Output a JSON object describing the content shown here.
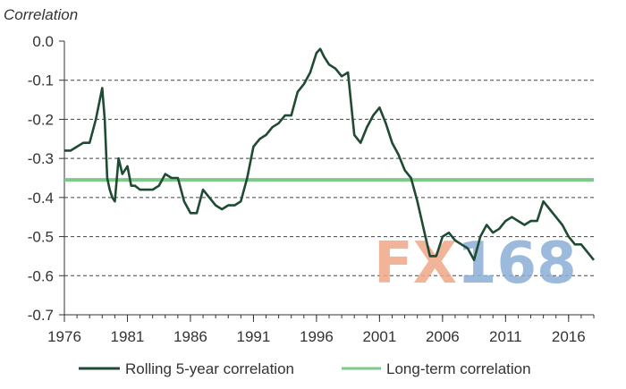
{
  "chart_data": {
    "type": "line",
    "ylabel": "Correlation",
    "xlim": [
      1976,
      2018
    ],
    "ylim": [
      -0.7,
      0.0
    ],
    "y_ticks": [
      0.0,
      -0.1,
      -0.2,
      -0.3,
      -0.4,
      -0.5,
      -0.6,
      -0.7
    ],
    "y_tick_labels": [
      "0.0",
      "-0.1",
      "-0.2",
      "-0.3",
      "-0.4",
      "-0.5",
      "-0.6",
      "-0.7"
    ],
    "x_ticks": [
      1976,
      1981,
      1986,
      1991,
      1996,
      2001,
      2006,
      2011,
      2016
    ],
    "x_tick_labels": [
      "1976",
      "1981",
      "1986",
      "1991",
      "1996",
      "2001",
      "2006",
      "2011",
      "2016"
    ],
    "grid": "horizontal dashed",
    "legend_position": "bottom",
    "series": [
      {
        "name": "Rolling 5-year correlation",
        "color": "#1f4a33",
        "x": [
          1976.0,
          1976.5,
          1977.0,
          1977.5,
          1978.0,
          1978.5,
          1979.0,
          1979.2,
          1979.4,
          1979.6,
          1979.8,
          1980.0,
          1980.3,
          1980.6,
          1981.0,
          1981.3,
          1981.6,
          1982.0,
          1982.5,
          1983.0,
          1983.5,
          1984.0,
          1984.5,
          1985.0,
          1985.5,
          1986.0,
          1986.5,
          1987.0,
          1987.5,
          1988.0,
          1988.5,
          1989.0,
          1989.5,
          1990.0,
          1990.5,
          1991.0,
          1991.5,
          1992.0,
          1992.5,
          1993.0,
          1993.5,
          1994.0,
          1994.5,
          1995.0,
          1995.5,
          1996.0,
          1996.3,
          1996.6,
          1997.0,
          1997.5,
          1998.0,
          1998.5,
          1999.0,
          1999.5,
          2000.0,
          2000.5,
          2001.0,
          2001.5,
          2002.0,
          2002.5,
          2003.0,
          2003.5,
          2004.0,
          2004.5,
          2005.0,
          2005.5,
          2006.0,
          2006.5,
          2007.0,
          2007.5,
          2008.0,
          2008.5,
          2009.0,
          2009.5,
          2010.0,
          2010.5,
          2011.0,
          2011.5,
          2012.0,
          2012.5,
          2013.0,
          2013.5,
          2014.0,
          2014.5,
          2015.0,
          2015.5,
          2016.0,
          2016.5,
          2017.0,
          2017.5,
          2018.0
        ],
        "y": [
          -0.28,
          -0.28,
          -0.27,
          -0.26,
          -0.26,
          -0.2,
          -0.12,
          -0.2,
          -0.35,
          -0.38,
          -0.4,
          -0.41,
          -0.3,
          -0.34,
          -0.32,
          -0.37,
          -0.37,
          -0.38,
          -0.38,
          -0.38,
          -0.37,
          -0.34,
          -0.35,
          -0.35,
          -0.41,
          -0.44,
          -0.44,
          -0.38,
          -0.4,
          -0.42,
          -0.43,
          -0.42,
          -0.42,
          -0.41,
          -0.35,
          -0.27,
          -0.25,
          -0.24,
          -0.22,
          -0.21,
          -0.19,
          -0.19,
          -0.13,
          -0.11,
          -0.08,
          -0.03,
          -0.02,
          -0.04,
          -0.06,
          -0.07,
          -0.09,
          -0.08,
          -0.24,
          -0.26,
          -0.22,
          -0.19,
          -0.17,
          -0.21,
          -0.26,
          -0.29,
          -0.33,
          -0.35,
          -0.41,
          -0.48,
          -0.55,
          -0.55,
          -0.5,
          -0.49,
          -0.51,
          -0.52,
          -0.53,
          -0.56,
          -0.5,
          -0.47,
          -0.49,
          -0.48,
          -0.46,
          -0.45,
          -0.46,
          -0.47,
          -0.46,
          -0.46,
          -0.41,
          -0.43,
          -0.45,
          -0.47,
          -0.5,
          -0.52,
          -0.52,
          -0.54,
          -0.56
        ]
      },
      {
        "name": "Long-term correlation",
        "color": "#7cc98a",
        "x": [
          1976.0,
          2018.0
        ],
        "y": [
          -0.355,
          -0.355
        ]
      }
    ]
  },
  "watermark": {
    "text_fx": "FX",
    "text_num": "168",
    "fx_color": "#f0a887",
    "num_color": "#8aaed6"
  }
}
